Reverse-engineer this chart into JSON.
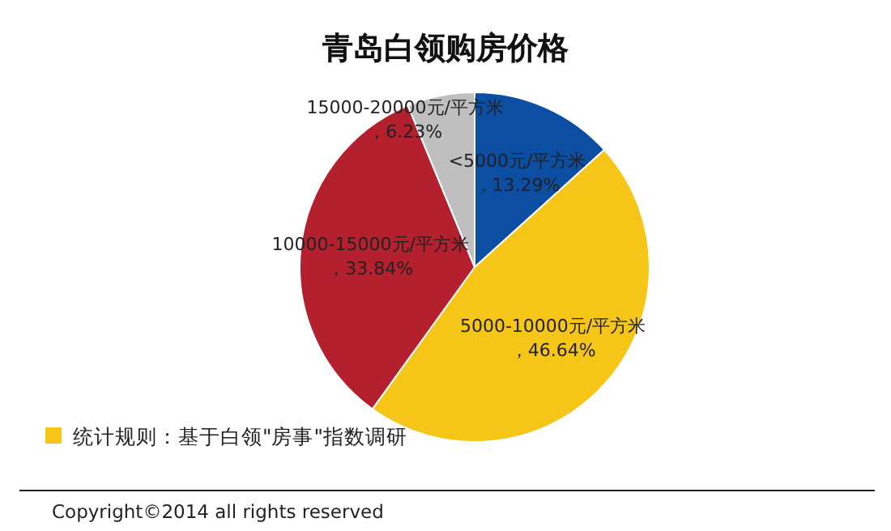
{
  "chart_data": {
    "type": "pie",
    "title": "青岛白领购房价格",
    "categories": [
      "<5000元/平方米",
      "5000-10000元/平方米",
      "10000-15000元/平方米",
      "15000-20000元/平方米"
    ],
    "values": [
      13.29,
      46.64,
      33.84,
      6.23
    ],
    "value_labels": [
      "，13.29%",
      "，46.64%",
      "，33.84%",
      "，6.23%"
    ],
    "colors": [
      "#0b4ea2",
      "#f5c518",
      "#b5202e",
      "#bfbfbf"
    ],
    "annotations": [
      "统计规则：基于白领\"房事\"指数调研",
      "Copyright©2014 all rights reserved"
    ]
  }
}
